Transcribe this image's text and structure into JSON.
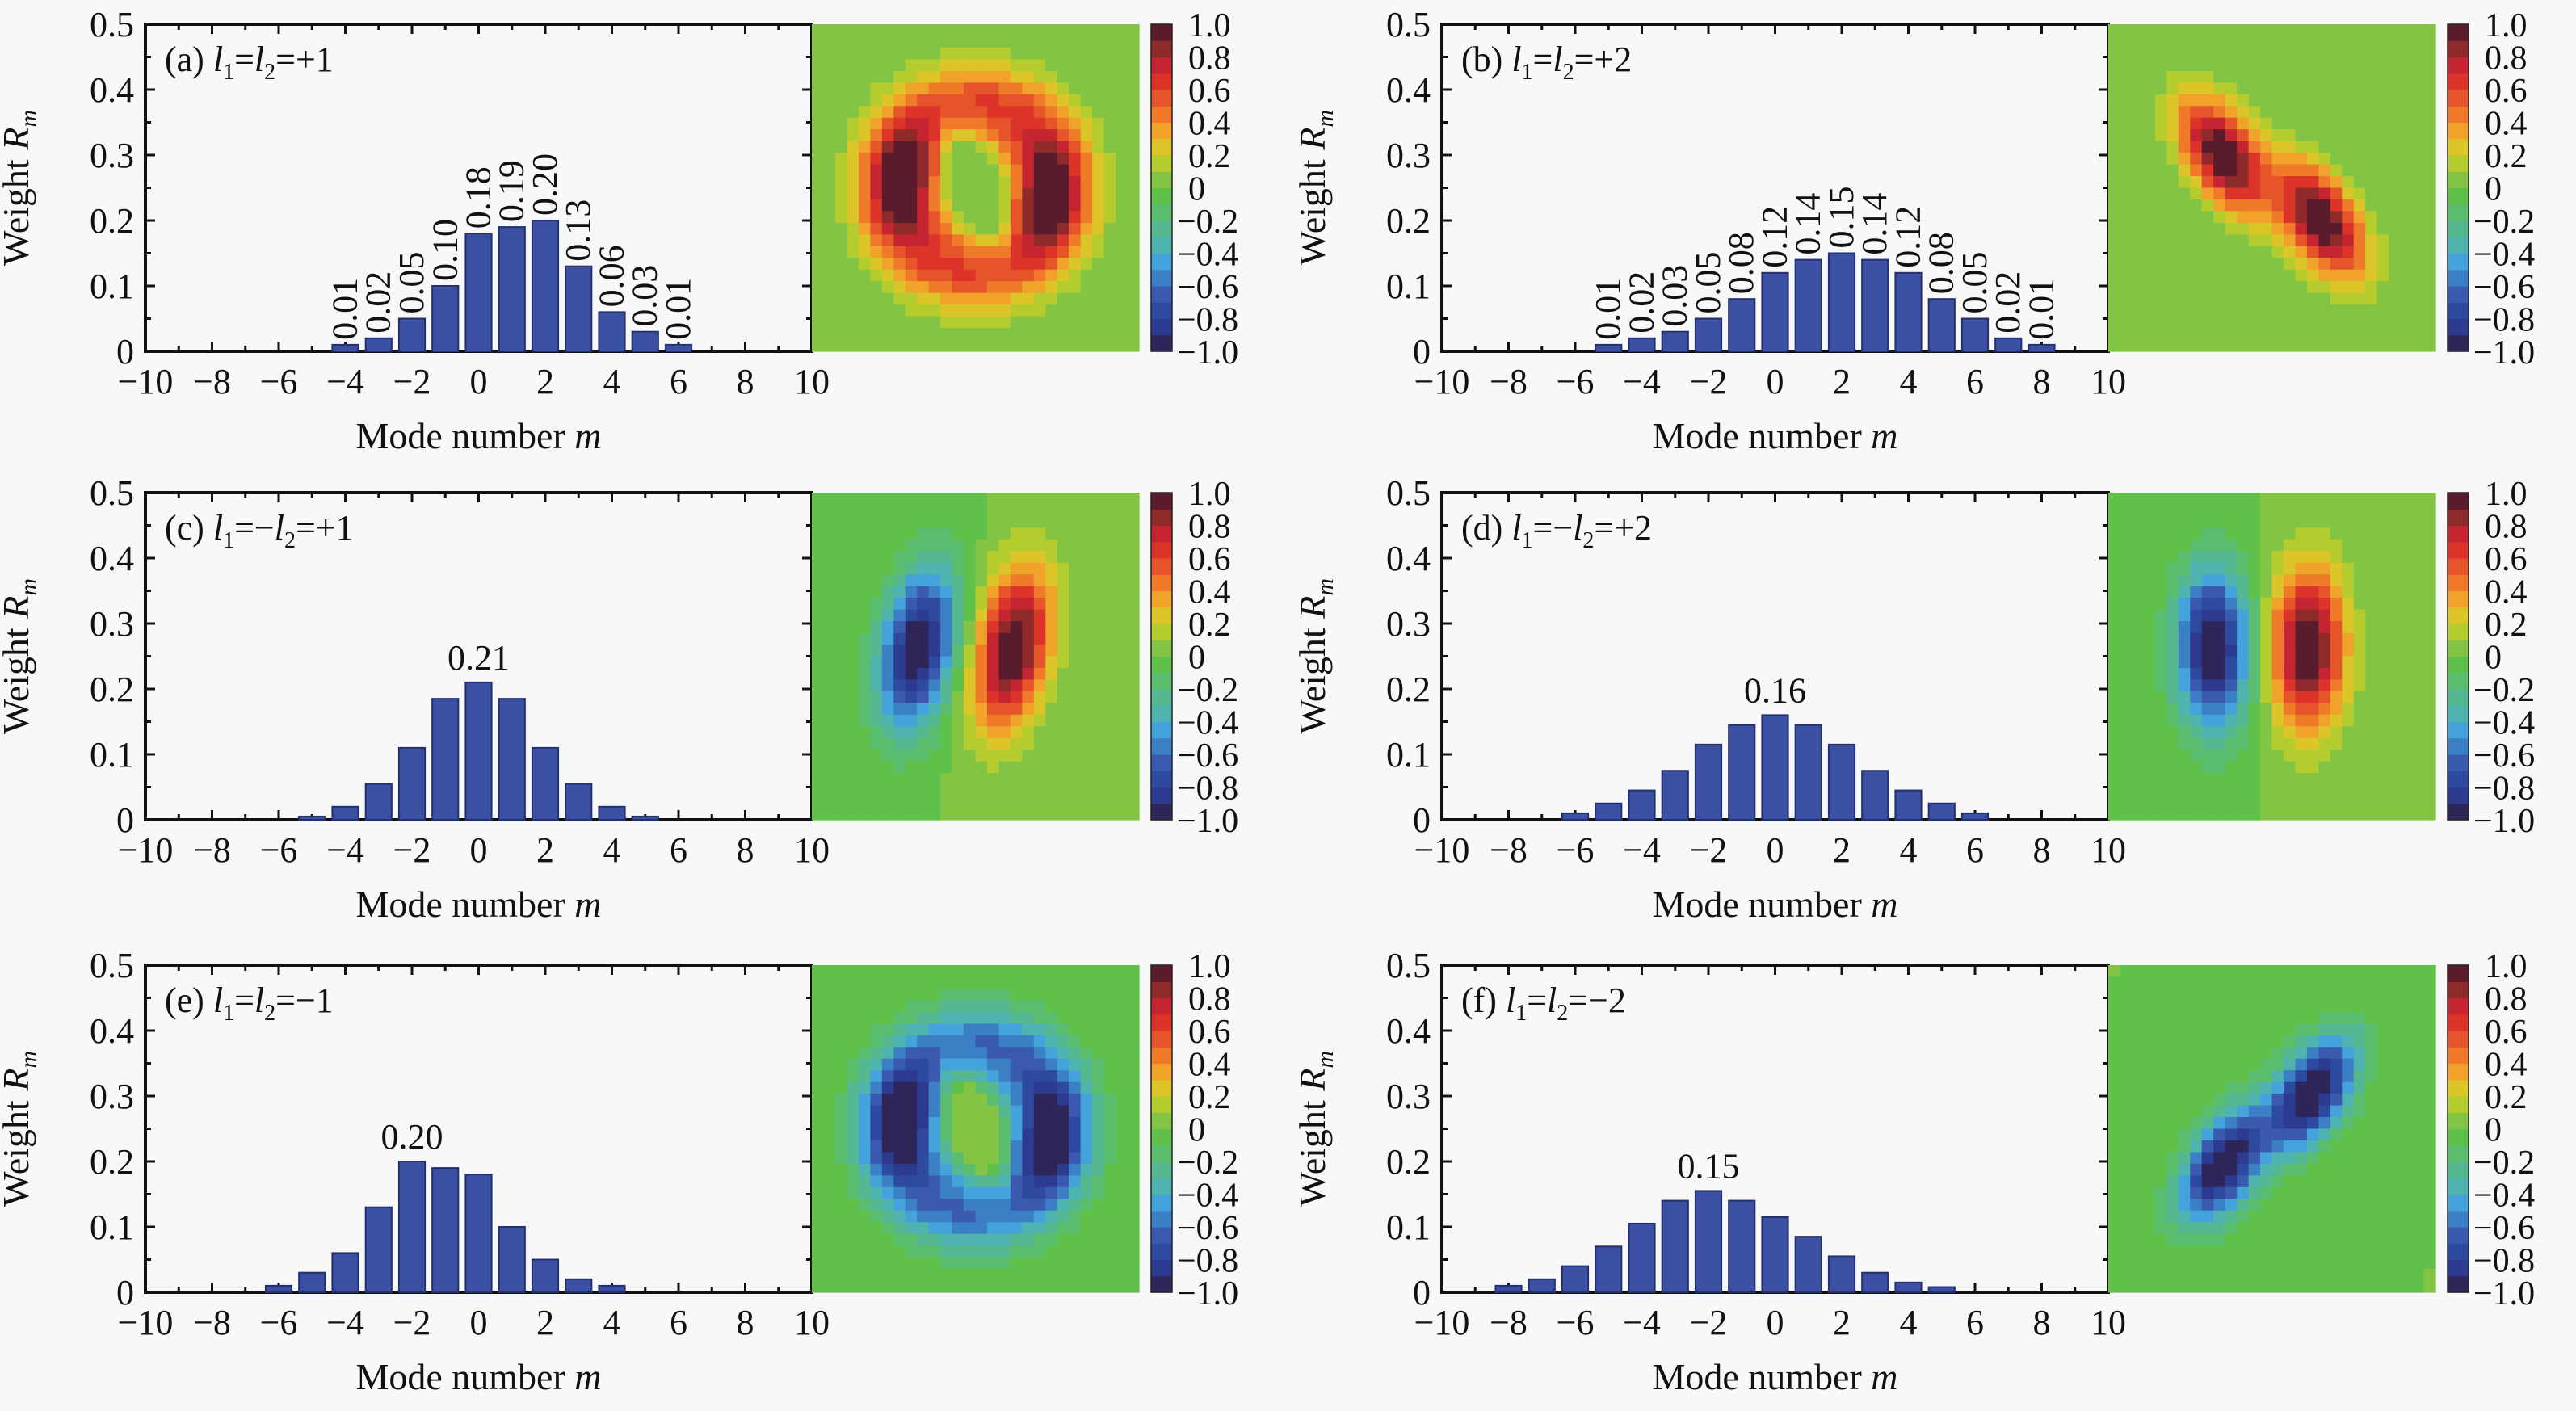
{
  "figure": {
    "background": "#f8f8f8",
    "bar_color": "#3b4fa3",
    "bar_edge_color": "#22306e",
    "colormap": [
      "#2e2659",
      "#2c3a8f",
      "#2d4aa0",
      "#3a5ab0",
      "#3b7fc4",
      "#45a3dc",
      "#4fb3b0",
      "#56b890",
      "#5bbd6e",
      "#5fc04a",
      "#84c444",
      "#b5cc2e",
      "#dcc528",
      "#f1a22a",
      "#ee7a2a",
      "#e6552a",
      "#dc3428",
      "#c42530",
      "#8f2a2a",
      "#5a1c2c"
    ]
  },
  "chart_data": [
    {
      "id": "a",
      "type": "bar",
      "panel_label": "(a)",
      "condition": {
        "l1": "l",
        "sub1": "1",
        "eq": "=",
        "l2": "l",
        "sub2": "2",
        "rhs": "=+1",
        "text": "l1=l2=+1"
      },
      "xlabel": "Mode number m",
      "ylabel": "Weight R_m",
      "xlim": [
        -10,
        10
      ],
      "ylim": [
        0,
        0.5
      ],
      "xticks": [
        -10,
        -8,
        -6,
        -4,
        -2,
        0,
        2,
        4,
        6,
        8,
        10
      ],
      "yticks": [
        0,
        0.1,
        0.2,
        0.3,
        0.4,
        0.5
      ],
      "ytick_labels": [
        "0",
        "0.1",
        "0.2",
        "0.3",
        "0.4",
        "0.5"
      ],
      "x": [
        -4,
        -3,
        -2,
        -1,
        0,
        1,
        2,
        3,
        4,
        5,
        6
      ],
      "values": [
        0.01,
        0.02,
        0.05,
        0.1,
        0.18,
        0.19,
        0.2,
        0.13,
        0.06,
        0.03,
        0.01
      ],
      "data_labels": [
        "0.01",
        "0.02",
        "0.05",
        "0.10",
        "0.18",
        "0.19",
        "0.20",
        "0.13",
        "0.06",
        "0.03",
        "0.01"
      ],
      "label_mode": "all-rotated",
      "heatmap": {
        "pattern": "ring-two-lobes",
        "sign": 1,
        "tilt": "vertical"
      },
      "colorbar": {
        "range": [
          -1.0,
          1.0
        ],
        "ticks": [
          "1.0",
          "0.8",
          "0.6",
          "0.4",
          "0.2",
          "0",
          "−0.2",
          "−0.4",
          "−0.6",
          "−0.8",
          "−1.0"
        ]
      }
    },
    {
      "id": "b",
      "type": "bar",
      "panel_label": "(b)",
      "condition": {
        "l1": "l",
        "sub1": "1",
        "eq": "=",
        "l2": "l",
        "sub2": "2",
        "rhs": "=+2",
        "text": "l1=l2=+2"
      },
      "xlabel": "Mode number m",
      "ylabel": "Weight R_m",
      "xlim": [
        -10,
        10
      ],
      "ylim": [
        0,
        0.5
      ],
      "xticks": [
        -10,
        -8,
        -6,
        -4,
        -2,
        0,
        2,
        4,
        6,
        8,
        10
      ],
      "yticks": [
        0,
        0.1,
        0.2,
        0.3,
        0.4,
        0.5
      ],
      "ytick_labels": [
        "0",
        "0.1",
        "0.2",
        "0.3",
        "0.4",
        "0.5"
      ],
      "x": [
        -5,
        -4,
        -3,
        -2,
        -1,
        0,
        1,
        2,
        3,
        4,
        5,
        6,
        7,
        8
      ],
      "values": [
        0.01,
        0.02,
        0.03,
        0.05,
        0.08,
        0.12,
        0.14,
        0.15,
        0.14,
        0.12,
        0.08,
        0.05,
        0.02,
        0.01
      ],
      "data_labels": [
        "0.01",
        "0.02",
        "0.03",
        "0.05",
        "0.08",
        "0.12",
        "0.14",
        "0.15",
        "0.14",
        "0.12",
        "0.08",
        "0.05",
        "0.02",
        "0.01"
      ],
      "label_mode": "all-rotated",
      "heatmap": {
        "pattern": "two-diagonal-lobes",
        "sign": 1,
        "tilt": "anti"
      },
      "colorbar": {
        "range": [
          -1.0,
          1.0
        ],
        "ticks": [
          "1.0",
          "0.8",
          "0.6",
          "0.4",
          "0.2",
          "0",
          "−0.2",
          "−0.4",
          "−0.6",
          "−0.8",
          "−1.0"
        ]
      }
    },
    {
      "id": "c",
      "type": "bar",
      "panel_label": "(c)",
      "condition": {
        "l1": "l",
        "sub1": "1",
        "eq": "=−",
        "l2": "l",
        "sub2": "2",
        "rhs": "=+1",
        "text": "l1=−l2=+1"
      },
      "xlabel": "Mode number m",
      "ylabel": "Weight R_m",
      "xlim": [
        -10,
        10
      ],
      "ylim": [
        0,
        0.5
      ],
      "xticks": [
        -10,
        -8,
        -6,
        -4,
        -2,
        0,
        2,
        4,
        6,
        8,
        10
      ],
      "yticks": [
        0,
        0.1,
        0.2,
        0.3,
        0.4,
        0.5
      ],
      "ytick_labels": [
        "0",
        "0.1",
        "0.2",
        "0.3",
        "0.4",
        "0.5"
      ],
      "x": [
        -5,
        -4,
        -3,
        -2,
        -1,
        0,
        1,
        2,
        3,
        4,
        5
      ],
      "values": [
        0.005,
        0.02,
        0.055,
        0.11,
        0.185,
        0.21,
        0.185,
        0.11,
        0.055,
        0.02,
        0.005
      ],
      "data_labels": [
        "",
        "",
        "",
        "",
        "",
        "0.21",
        "",
        "",
        "",
        "",
        ""
      ],
      "label_mode": "peak",
      "heatmap": {
        "pattern": "dipole-horizontal",
        "sign": 1,
        "tilt": "slight"
      },
      "colorbar": {
        "range": [
          -1.0,
          1.0
        ],
        "ticks": [
          "1.0",
          "0.8",
          "0.6",
          "0.4",
          "0.2",
          "0",
          "−0.2",
          "−0.4",
          "−0.6",
          "−0.8",
          "−1.0"
        ]
      }
    },
    {
      "id": "d",
      "type": "bar",
      "panel_label": "(d)",
      "condition": {
        "l1": "l",
        "sub1": "1",
        "eq": "=−",
        "l2": "l",
        "sub2": "2",
        "rhs": "=+2",
        "text": "l1=−l2=+2"
      },
      "xlabel": "Mode number m",
      "ylabel": "Weight R_m",
      "xlim": [
        -10,
        10
      ],
      "ylim": [
        0,
        0.5
      ],
      "xticks": [
        -10,
        -8,
        -6,
        -4,
        -2,
        0,
        2,
        4,
        6,
        8,
        10
      ],
      "yticks": [
        0,
        0.1,
        0.2,
        0.3,
        0.4,
        0.5
      ],
      "ytick_labels": [
        "0",
        "0.1",
        "0.2",
        "0.3",
        "0.4",
        "0.5"
      ],
      "x": [
        -6,
        -5,
        -4,
        -3,
        -2,
        -1,
        0,
        1,
        2,
        3,
        4,
        5,
        6
      ],
      "values": [
        0.01,
        0.025,
        0.045,
        0.075,
        0.115,
        0.145,
        0.16,
        0.145,
        0.115,
        0.075,
        0.045,
        0.025,
        0.01
      ],
      "data_labels": [
        "",
        "",
        "",
        "",
        "",
        "",
        "0.16",
        "",
        "",
        "",
        "",
        "",
        ""
      ],
      "label_mode": "peak",
      "heatmap": {
        "pattern": "dipole-horizontal",
        "sign": 1,
        "tilt": "none"
      },
      "colorbar": {
        "range": [
          -1.0,
          1.0
        ],
        "ticks": [
          "1.0",
          "0.8",
          "0.6",
          "0.4",
          "0.2",
          "0",
          "−0.2",
          "−0.4",
          "−0.6",
          "−0.8",
          "−1.0"
        ]
      }
    },
    {
      "id": "e",
      "type": "bar",
      "panel_label": "(e)",
      "condition": {
        "l1": "l",
        "sub1": "1",
        "eq": "=",
        "l2": "l",
        "sub2": "2",
        "rhs": "=−1",
        "text": "l1=l2=−1"
      },
      "xlabel": "Mode number m",
      "ylabel": "Weight R_m",
      "xlim": [
        -10,
        10
      ],
      "ylim": [
        0,
        0.5
      ],
      "xticks": [
        -10,
        -8,
        -6,
        -4,
        -2,
        0,
        2,
        4,
        6,
        8,
        10
      ],
      "yticks": [
        0,
        0.1,
        0.2,
        0.3,
        0.4,
        0.5
      ],
      "ytick_labels": [
        "0",
        "0.1",
        "0.2",
        "0.3",
        "0.4",
        "0.5"
      ],
      "x": [
        -6,
        -5,
        -4,
        -3,
        -2,
        -1,
        0,
        1,
        2,
        3,
        4
      ],
      "values": [
        0.01,
        0.03,
        0.06,
        0.13,
        0.2,
        0.19,
        0.18,
        0.1,
        0.05,
        0.02,
        0.01
      ],
      "data_labels": [
        "",
        "",
        "",
        "",
        "0.20",
        "",
        "",
        "",
        "",
        "",
        ""
      ],
      "label_mode": "peak",
      "heatmap": {
        "pattern": "ring-two-lobes",
        "sign": -1,
        "tilt": "vertical"
      },
      "colorbar": {
        "range": [
          -1.0,
          1.0
        ],
        "ticks": [
          "1.0",
          "0.8",
          "0.6",
          "0.4",
          "0.2",
          "0",
          "−0.2",
          "−0.4",
          "−0.6",
          "−0.8",
          "−1.0"
        ]
      }
    },
    {
      "id": "f",
      "type": "bar",
      "panel_label": "(f)",
      "condition": {
        "l1": "l",
        "sub1": "1",
        "eq": "=",
        "l2": "l",
        "sub2": "2",
        "rhs": "=−2",
        "text": "l1=l2=−2"
      },
      "xlabel": "Mode number m",
      "ylabel": "Weight R_m",
      "xlim": [
        -10,
        10
      ],
      "ylim": [
        0,
        0.5
      ],
      "xticks": [
        -10,
        -8,
        -6,
        -4,
        -2,
        0,
        2,
        4,
        6,
        8,
        10
      ],
      "yticks": [
        0,
        0.1,
        0.2,
        0.3,
        0.4,
        0.5
      ],
      "ytick_labels": [
        "0",
        "0.1",
        "0.2",
        "0.3",
        "0.4",
        "0.5"
      ],
      "x": [
        -8,
        -7,
        -6,
        -5,
        -4,
        -3,
        -2,
        -1,
        0,
        1,
        2,
        3,
        4,
        5
      ],
      "values": [
        0.01,
        0.02,
        0.04,
        0.07,
        0.105,
        0.14,
        0.155,
        0.14,
        0.115,
        0.085,
        0.055,
        0.03,
        0.015,
        0.008
      ],
      "data_labels": [
        "",
        "",
        "",
        "",
        "",
        "",
        "0.15",
        "",
        "",
        "",
        "",
        "",
        "",
        ""
      ],
      "label_mode": "peak",
      "heatmap": {
        "pattern": "two-diagonal-lobes",
        "sign": -1,
        "tilt": "main"
      },
      "colorbar": {
        "range": [
          -1.0,
          1.0
        ],
        "ticks": [
          "1.0",
          "0.8",
          "0.6",
          "0.4",
          "0.2",
          "0",
          "−0.2",
          "−0.4",
          "−0.6",
          "−0.8",
          "−1.0"
        ]
      }
    }
  ]
}
